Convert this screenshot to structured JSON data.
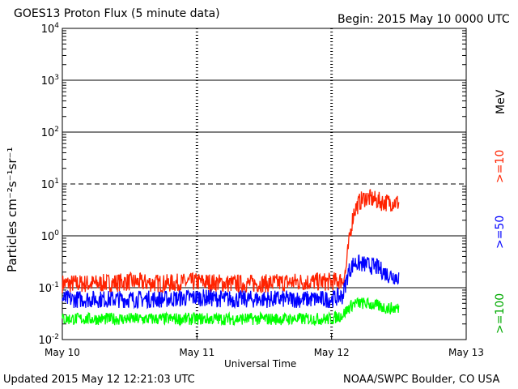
{
  "header": {
    "title": "GOES13 Proton Flux (5 minute data)",
    "begin": "Begin: 2015 May 10 0000 UTC"
  },
  "footer": {
    "updated": "Updated 2015 May 12 12:21:03 UTC",
    "credit": "NOAA/SWPC Boulder, CO USA"
  },
  "colors": {
    "red": "#ff2200",
    "blue": "#0000ff",
    "green": "#00ff00",
    "grid": "#000000"
  },
  "chart_data": {
    "type": "line",
    "ylabel": "Particles cm⁻²s⁻¹sr⁻¹",
    "xlabel": "Universal Time",
    "y_scale": "log",
    "ylim": [
      0.01,
      10000
    ],
    "y_ticks": [
      {
        "base": "10",
        "exp": "-2"
      },
      {
        "base": "10",
        "exp": "-1"
      },
      {
        "base": "10",
        "exp": "0"
      },
      {
        "base": "10",
        "exp": "1"
      },
      {
        "base": "10",
        "exp": "2"
      },
      {
        "base": "10",
        "exp": "3"
      },
      {
        "base": "10",
        "exp": "4"
      }
    ],
    "x_ticks": [
      "May 10",
      "May 11",
      "May 12",
      "May 13"
    ],
    "xlim_hours": [
      0,
      72
    ],
    "units_label": "MeV",
    "grid": "horizontal lines at each decade; dashed line at 10",
    "legend_position": "right side, vertical",
    "series": [
      {
        "name": ">=10",
        "color": "#ff2200",
        "points": [
          [
            0,
            0.12
          ],
          [
            6,
            0.12
          ],
          [
            12,
            0.13
          ],
          [
            18,
            0.12
          ],
          [
            24,
            0.13
          ],
          [
            30,
            0.12
          ],
          [
            36,
            0.12
          ],
          [
            42,
            0.13
          ],
          [
            48,
            0.13
          ],
          [
            50,
            0.14
          ],
          [
            50.5,
            0.2
          ],
          [
            51,
            0.6
          ],
          [
            51.5,
            1.5
          ],
          [
            52,
            3
          ],
          [
            53,
            4.5
          ],
          [
            54,
            5.5
          ],
          [
            55,
            5.2
          ],
          [
            56,
            4.8
          ],
          [
            57,
            4.5
          ],
          [
            58,
            4.4
          ],
          [
            59,
            4.5
          ],
          [
            60,
            4.3
          ]
        ]
      },
      {
        "name": ">=50",
        "color": "#0000ff",
        "points": [
          [
            0,
            0.06
          ],
          [
            6,
            0.06
          ],
          [
            12,
            0.06
          ],
          [
            18,
            0.06
          ],
          [
            24,
            0.065
          ],
          [
            30,
            0.06
          ],
          [
            36,
            0.06
          ],
          [
            42,
            0.06
          ],
          [
            48,
            0.06
          ],
          [
            50,
            0.07
          ],
          [
            51,
            0.2
          ],
          [
            52,
            0.3
          ],
          [
            54,
            0.28
          ],
          [
            56,
            0.25
          ],
          [
            58,
            0.18
          ],
          [
            60,
            0.16
          ]
        ]
      },
      {
        "name": ">=100",
        "color": "#00ff00",
        "points": [
          [
            0,
            0.025
          ],
          [
            6,
            0.025
          ],
          [
            12,
            0.025
          ],
          [
            18,
            0.025
          ],
          [
            24,
            0.025
          ],
          [
            30,
            0.025
          ],
          [
            36,
            0.025
          ],
          [
            42,
            0.025
          ],
          [
            48,
            0.025
          ],
          [
            50,
            0.03
          ],
          [
            51,
            0.04
          ],
          [
            52,
            0.05
          ],
          [
            54,
            0.05
          ],
          [
            56,
            0.045
          ],
          [
            58,
            0.04
          ],
          [
            60,
            0.04
          ]
        ]
      }
    ]
  }
}
